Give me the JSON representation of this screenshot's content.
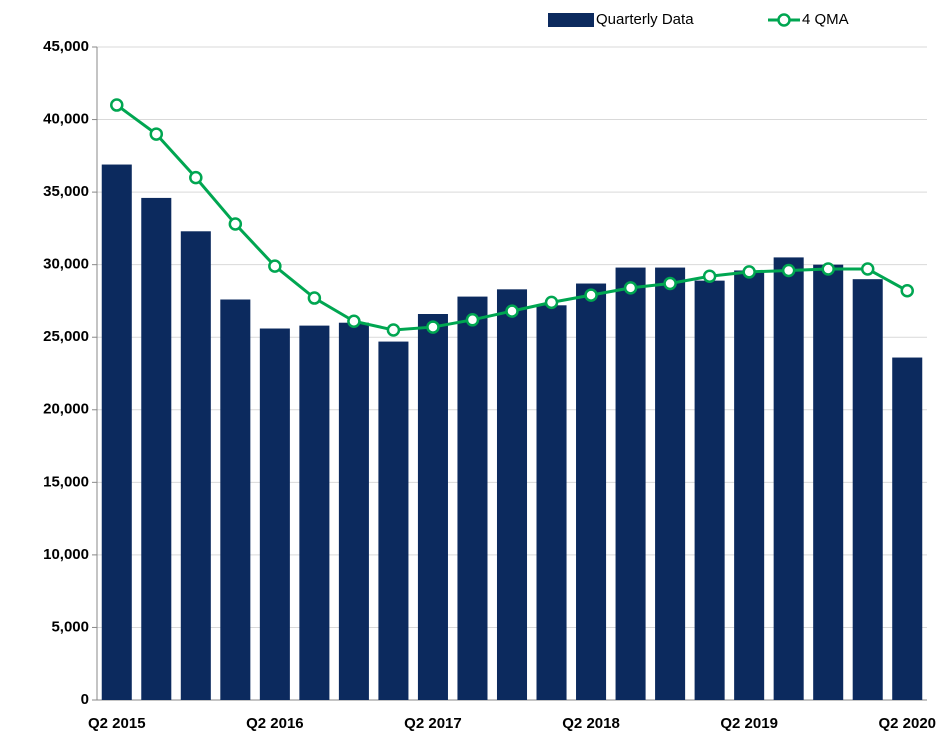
{
  "chart_data": {
    "type": "bar_line",
    "categories": [
      "Q2 2015",
      null,
      null,
      null,
      "Q2 2016",
      null,
      null,
      null,
      "Q2 2017",
      null,
      null,
      null,
      "Q2 2018",
      null,
      null,
      null,
      "Q2 2019",
      null,
      null,
      null,
      "Q2 2020"
    ],
    "series": [
      {
        "name": "Quarterly Data",
        "type": "bar",
        "color": "#0c2a5e",
        "values": [
          36900,
          34600,
          32300,
          27600,
          25600,
          25800,
          26000,
          24700,
          26600,
          27800,
          28300,
          27200,
          28700,
          29800,
          29800,
          28900,
          29600,
          30500,
          30000,
          29000,
          23600
        ]
      },
      {
        "name": "4 QMA",
        "type": "line",
        "color": "#00a651",
        "values": [
          41000,
          39000,
          36000,
          32800,
          29900,
          27700,
          26100,
          25500,
          25700,
          26200,
          26800,
          27400,
          27900,
          28400,
          28700,
          29200,
          29500,
          29600,
          29700,
          29700,
          28200
        ]
      }
    ],
    "ylim": [
      0,
      45000
    ],
    "yticks": [
      0,
      {
        "value": 5000,
        "label": "5,000"
      },
      {
        "value": 10000,
        "label": "10,000"
      },
      {
        "value": 15000,
        "label": "15,000"
      },
      {
        "value": 20000,
        "label": "20,000"
      },
      {
        "value": 25000,
        "label": "25,000"
      },
      {
        "value": 30000,
        "label": "30,000"
      },
      {
        "value": 35000,
        "label": "35,000"
      },
      {
        "value": 40000,
        "label": "40,000"
      },
      {
        "value": 45000,
        "label": "45,000"
      }
    ],
    "grid": true,
    "legend": "top-right"
  }
}
